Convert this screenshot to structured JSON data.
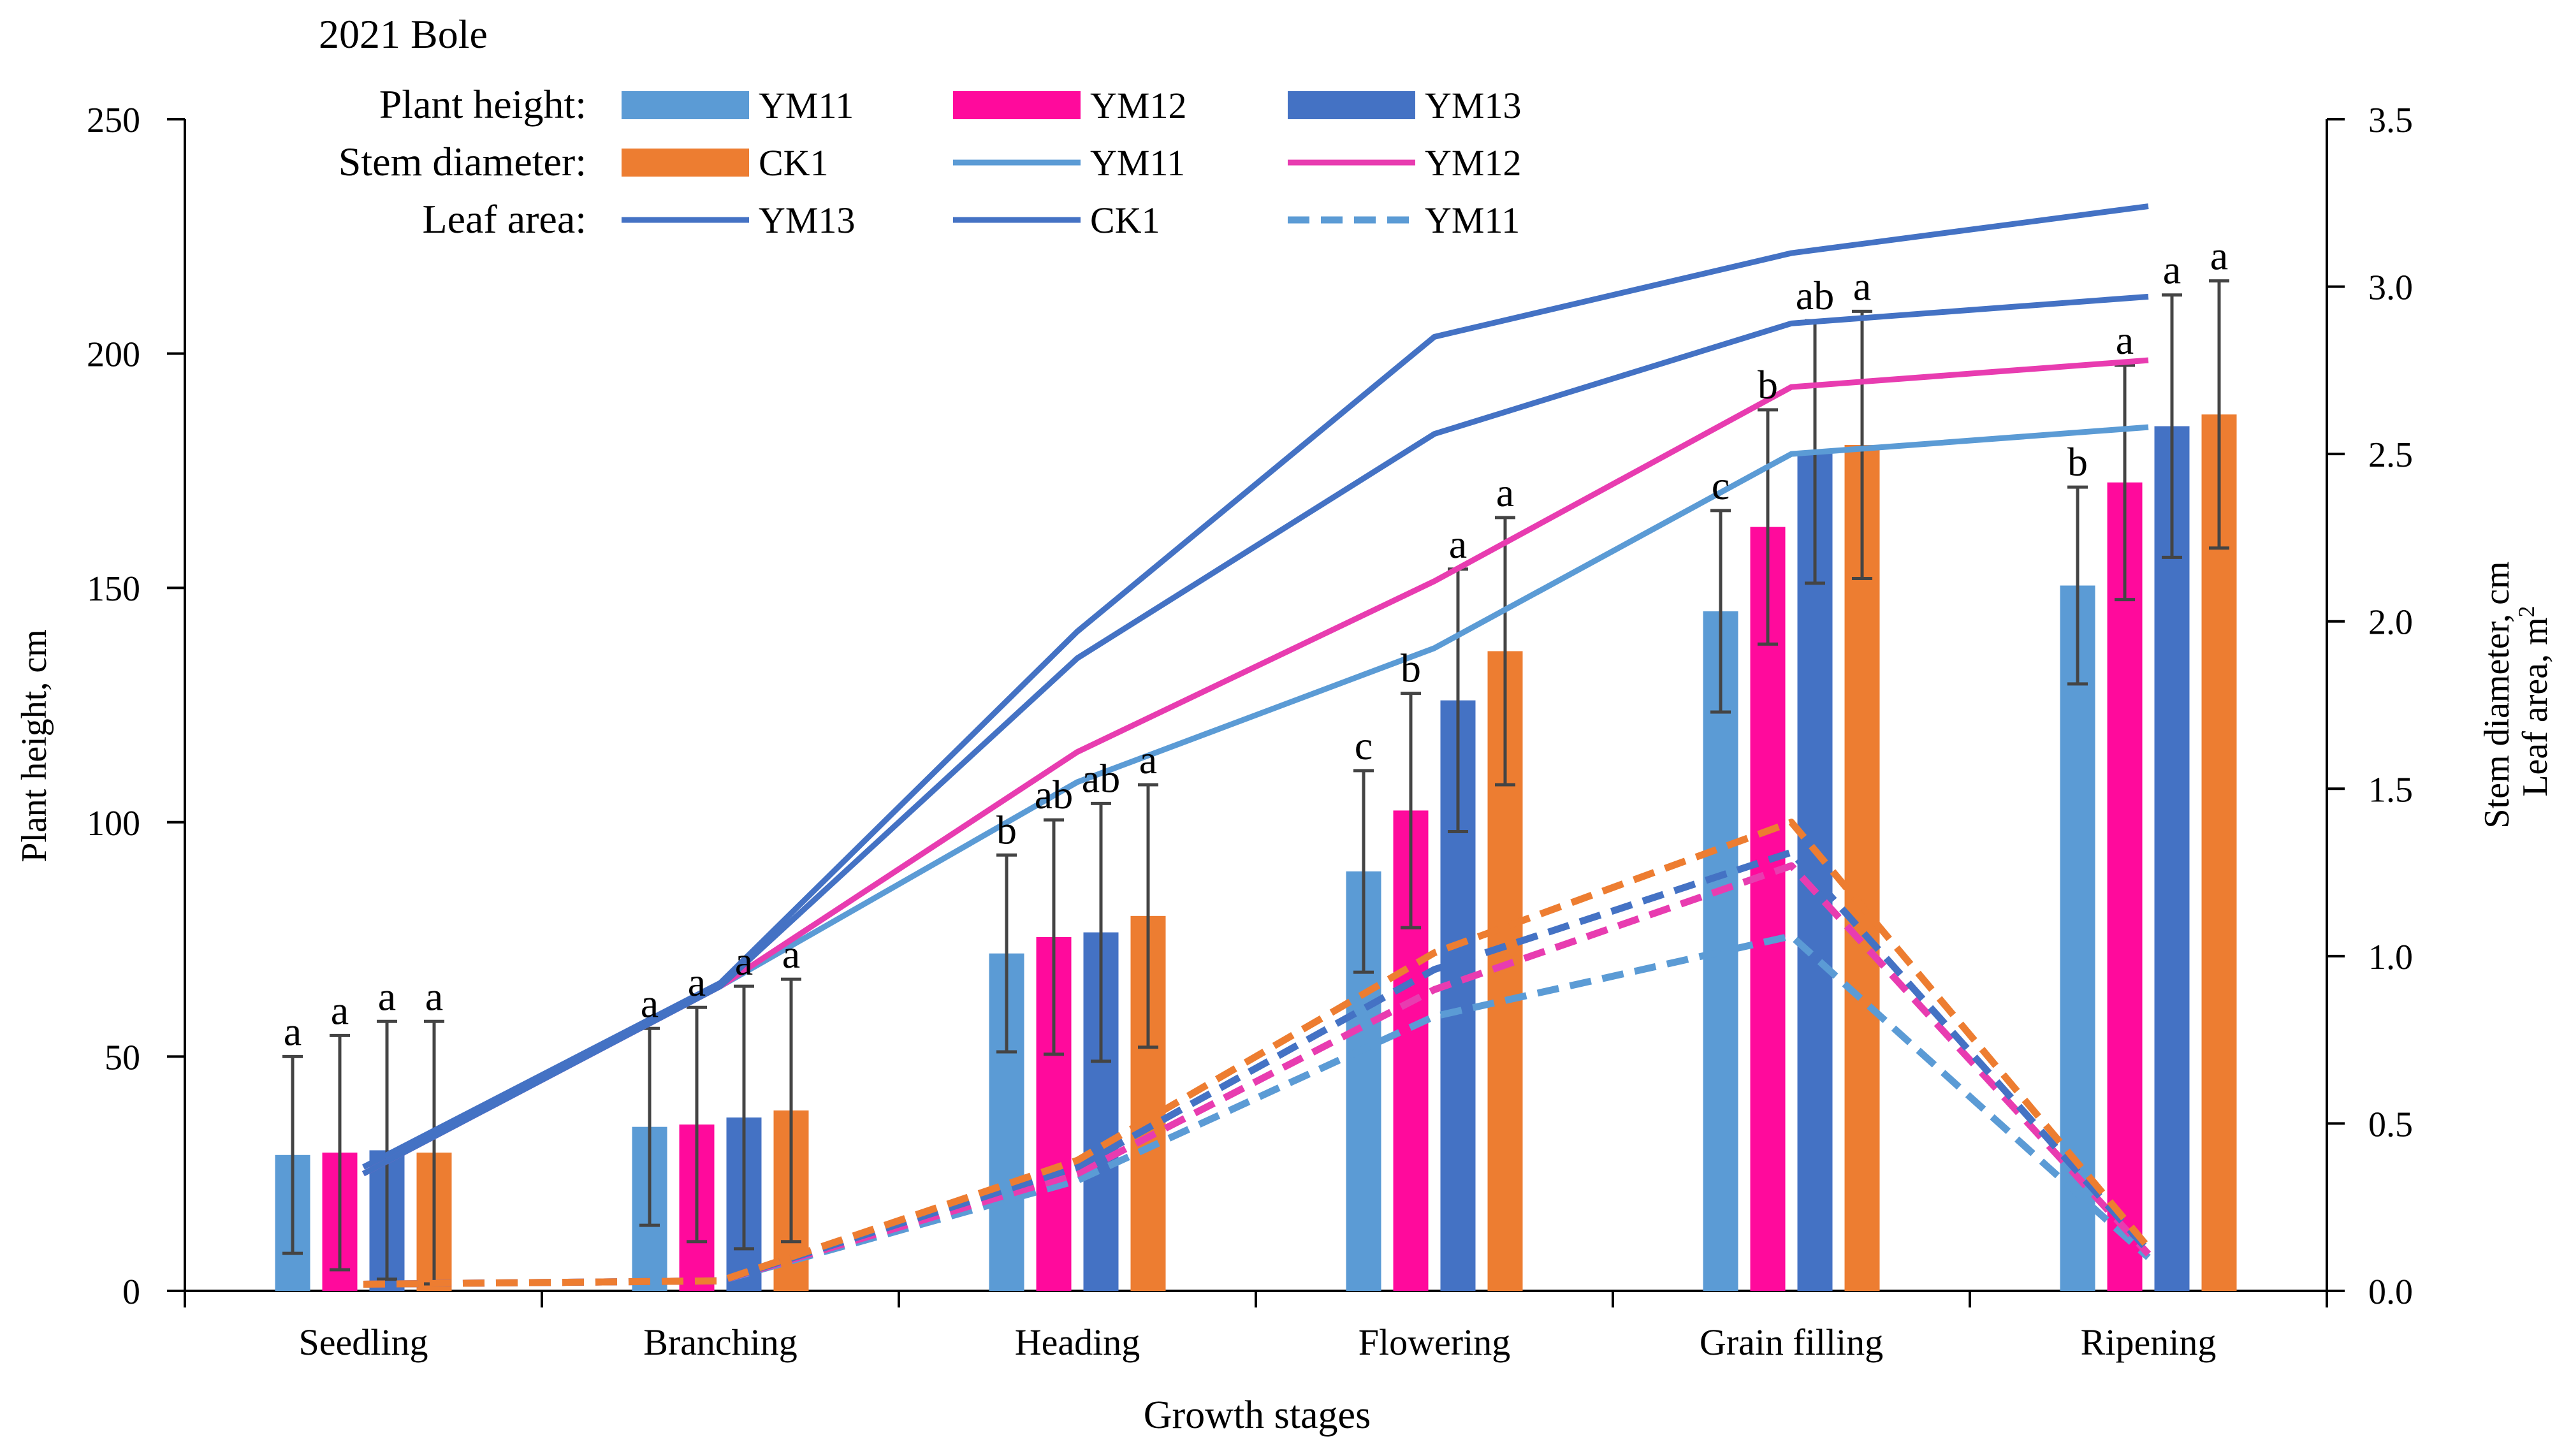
{
  "chart_data": {
    "type": "bar+line",
    "title": "2021  Bole",
    "xlabel": "Growth stages",
    "ylabel_left": "Plant height,   cm",
    "ylabel_right_1": "Stem diameter, cm",
    "ylabel_right_2": "Leaf area, m",
    "ylabel_right_2_sup": "2",
    "categories": [
      "Seedling",
      "Branching",
      "Heading",
      "Flowering",
      "Grain filling",
      "Ripening"
    ],
    "y_left": {
      "min": 0,
      "max": 250,
      "ticks": [
        "0",
        "50",
        "100",
        "150",
        "200",
        "250"
      ]
    },
    "y_right": {
      "min": 0,
      "max": 3.5,
      "ticks": [
        "0.0",
        "0.5",
        "1.0",
        "1.5",
        "2.0",
        "2.5",
        "3.0",
        "3.5"
      ]
    },
    "legend": {
      "rows": [
        {
          "label": "Plant     height:",
          "entries": [
            {
              "kind": "bar",
              "name": "YM11",
              "color": "#5b9bd5"
            },
            {
              "kind": "bar",
              "name": "YM12",
              "color": "#ff0a9c"
            },
            {
              "kind": "bar",
              "name": "YM13",
              "color": "#4472c4"
            }
          ]
        },
        {
          "label": "Stem diameter:",
          "entries": [
            {
              "kind": "bar",
              "name": "CK1",
              "color": "#ed7d31"
            },
            {
              "kind": "line",
              "name": "YM11",
              "color": "#5b9bd5"
            },
            {
              "kind": "line",
              "name": "YM12",
              "color": "#e83cb0"
            }
          ]
        },
        {
          "label": "Leaf           area:",
          "entries": [
            {
              "kind": "line",
              "name": "YM13",
              "color": "#4472c4"
            },
            {
              "kind": "line",
              "name": "CK1",
              "color": "#4472c4"
            },
            {
              "kind": "dash",
              "name": "YM11",
              "color": "#5b9bd5"
            }
          ]
        }
      ]
    },
    "plant_height_series": [
      {
        "name": "YM11",
        "color": "#5b9bd5",
        "values": [
          29,
          35,
          72,
          89.5,
          145,
          150.5
        ],
        "errors": [
          21,
          21,
          21,
          21.5,
          21.5,
          21
        ],
        "letters": [
          "a",
          "a",
          "b",
          "c",
          "c",
          "b"
        ]
      },
      {
        "name": "YM12",
        "color": "#ff0a9c",
        "values": [
          29.5,
          35.5,
          75.5,
          102.5,
          163,
          172.5
        ],
        "errors": [
          25,
          25,
          25,
          25,
          25,
          25
        ],
        "letters": [
          "a",
          "a",
          "ab",
          "b",
          "b",
          "a"
        ]
      },
      {
        "name": "YM13",
        "color": "#4472c4",
        "values": [
          30,
          37,
          76.5,
          126,
          179,
          184.5
        ],
        "errors": [
          27.5,
          28,
          27.5,
          28,
          28,
          28
        ],
        "letters": [
          "a",
          "a",
          "ab",
          "a",
          "ab",
          "a"
        ]
      },
      {
        "name": "CK1",
        "color": "#ed7d31",
        "values": [
          29.5,
          38.5,
          80,
          136.5,
          180.5,
          187
        ],
        "errors": [
          28,
          28,
          28,
          28.5,
          28.5,
          28.5
        ],
        "letters": [
          "a",
          "a",
          "a",
          "a",
          "a",
          "a"
        ]
      }
    ],
    "stem_diameter_series": [
      {
        "name": "YM11",
        "color": "#5b9bd5",
        "values": [
          0.35,
          0.91,
          1.52,
          1.92,
          2.5,
          2.58
        ]
      },
      {
        "name": "YM12",
        "color": "#e83cb0",
        "values": [
          0.35,
          0.91,
          1.61,
          2.12,
          2.7,
          2.78
        ]
      },
      {
        "name": "YM13",
        "color": "#4472c4",
        "values": [
          0.35,
          0.91,
          1.89,
          2.56,
          2.89,
          2.97
        ]
      },
      {
        "name": "CK1",
        "color": "#4472c4",
        "values": [
          0.37,
          0.92,
          1.97,
          2.85,
          3.1,
          3.24
        ]
      }
    ],
    "leaf_area_series": [
      {
        "name": "YM11",
        "color": "#5b9bd5",
        "values": [
          0.02,
          0.03,
          0.33,
          0.82,
          1.06,
          0.1
        ]
      },
      {
        "name": "YM12",
        "color": "#e83cb0",
        "values": [
          0.02,
          0.03,
          0.35,
          0.9,
          1.27,
          0.11
        ]
      },
      {
        "name": "YM13",
        "color": "#4472c4",
        "values": [
          0.02,
          0.03,
          0.37,
          0.96,
          1.31,
          0.12
        ]
      },
      {
        "name": "CK1",
        "color": "#ed7d31",
        "values": [
          0.02,
          0.03,
          0.39,
          1.01,
          1.4,
          0.13
        ]
      }
    ]
  }
}
